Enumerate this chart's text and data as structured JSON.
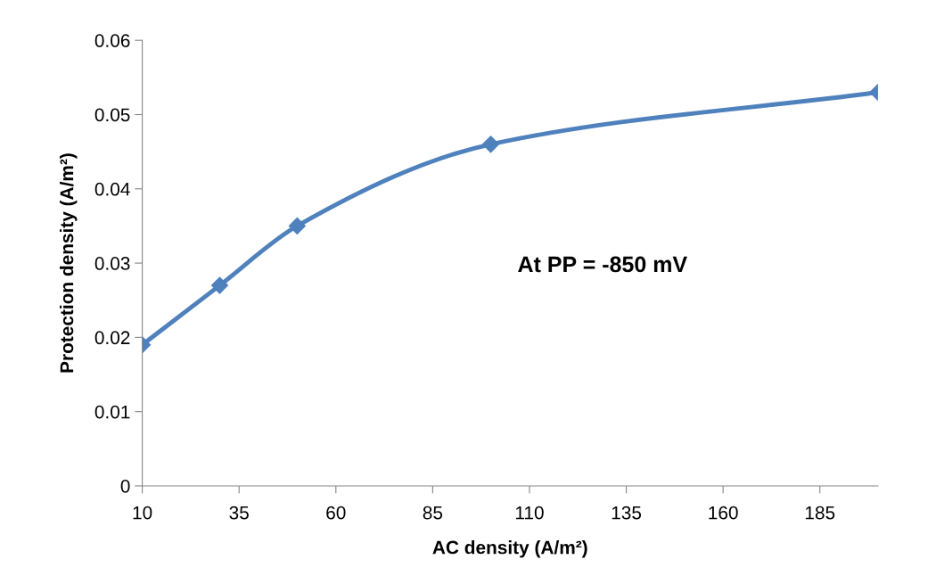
{
  "chart_data": {
    "type": "line",
    "xlabel": "AC density (A/m²)",
    "ylabel": "Protection density (A/m²)",
    "x": [
      10,
      30,
      50,
      100,
      200
    ],
    "series": [
      {
        "color": "#4f81bd",
        "values": [
          0.019,
          0.027,
          0.035,
          0.046,
          0.053
        ]
      }
    ],
    "xlim": [
      10,
      200
    ],
    "xticks": [
      10,
      35,
      60,
      85,
      110,
      135,
      160,
      185
    ],
    "ylim": [
      0,
      0.06
    ],
    "yticks": [
      0,
      0.01,
      0.02,
      0.03,
      0.04,
      0.05,
      0.06
    ],
    "marker": "diamond",
    "line_style": "solid",
    "grid": false,
    "legend": false,
    "annotations": [
      "At PP = -850 mV"
    ]
  }
}
